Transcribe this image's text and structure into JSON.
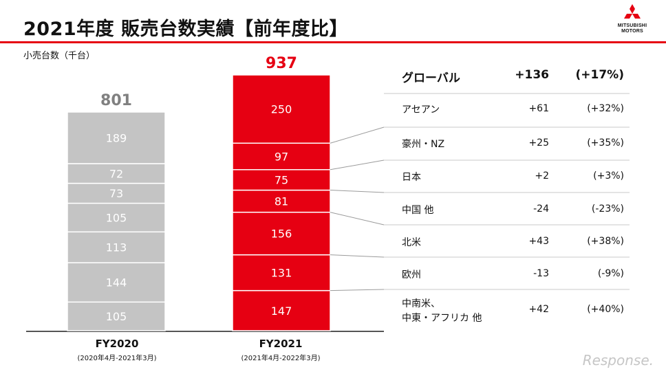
{
  "header": {
    "title": "2021年度 販売台数実績【前年度比】",
    "unit_label": "小売台数（千台）",
    "accent_color": "#e60012"
  },
  "logo": {
    "line1": "MITSUBISHI",
    "line2": "MOTORS",
    "icon": "three-diamond-logo-icon"
  },
  "chart_data": {
    "type": "bar",
    "stacked": true,
    "unit": "千台",
    "categories": [
      "FY2020",
      "FY2021"
    ],
    "category_periods": [
      "(2020年4月-2021年3月)",
      "(2021年4月-2022年3月)"
    ],
    "totals": [
      801,
      937
    ],
    "segments_bottom_to_top": [
      {
        "name": "中南米、中東・アフリカ 他",
        "values": [
          105,
          147
        ]
      },
      {
        "name": "欧州",
        "values": [
          144,
          131
        ]
      },
      {
        "name": "北米",
        "values": [
          113,
          156
        ]
      },
      {
        "name": "中国 他",
        "values": [
          105,
          81
        ]
      },
      {
        "name": "日本",
        "values": [
          73,
          75
        ]
      },
      {
        "name": "豪州・NZ",
        "values": [
          72,
          97
        ]
      },
      {
        "name": "アセアン",
        "values": [
          189,
          250
        ]
      }
    ],
    "colors": [
      "#c4c4c4",
      "#e60012"
    ],
    "total_label_colors": [
      "#808080",
      "#e60012"
    ]
  },
  "comparison": {
    "header": {
      "name": "グローバル",
      "diff": "+136",
      "pct": "(+17%)"
    },
    "rows": [
      {
        "name": "アセアン",
        "diff": "+61",
        "pct": "(+32%)"
      },
      {
        "name": "豪州・NZ",
        "diff": "+25",
        "pct": "(+35%)"
      },
      {
        "name": "日本",
        "diff": "+2",
        "pct": "(+3%)"
      },
      {
        "name": "中国 他",
        "diff": "-24",
        "pct": "(-23%)"
      },
      {
        "name": "北米",
        "diff": "+43",
        "pct": "(+38%)"
      },
      {
        "name": "欧州",
        "diff": "-13",
        "pct": "(-9%)"
      },
      {
        "name": "中南米、\n中東・アフリカ 他",
        "diff": "+42",
        "pct": "(+40%)"
      }
    ]
  },
  "watermark": "Response."
}
